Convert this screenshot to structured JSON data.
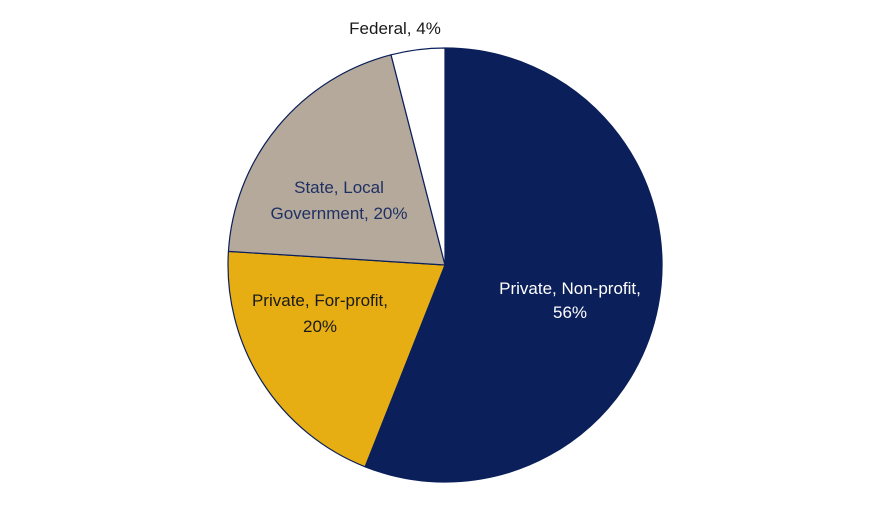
{
  "chart_data": {
    "type": "pie",
    "title": "",
    "legend": "none",
    "slices": [
      {
        "category": "Private, Non-profit",
        "value": 56,
        "label_lines": [
          "Private, Non-profit,",
          "56%"
        ],
        "color": "#0B1F5A",
        "label_color": "#FFFFFF"
      },
      {
        "category": "Private, For-profit",
        "value": 20,
        "label_lines": [
          "Private, For-profit,",
          "20%"
        ],
        "color": "#E6AE13",
        "label_color": "#1A1A1A"
      },
      {
        "category": "State, Local Government",
        "value": 20,
        "label_lines": [
          "State, Local",
          "Government, 20%"
        ],
        "color": "#B5A99C",
        "label_color": "#1F3063"
      },
      {
        "category": "Federal",
        "value": 4,
        "label_lines": [
          "Federal, 4%"
        ],
        "color": "#FFFFFF",
        "label_color": "#1A1A1A"
      }
    ],
    "slice_border_color": "#0B1F5A"
  }
}
